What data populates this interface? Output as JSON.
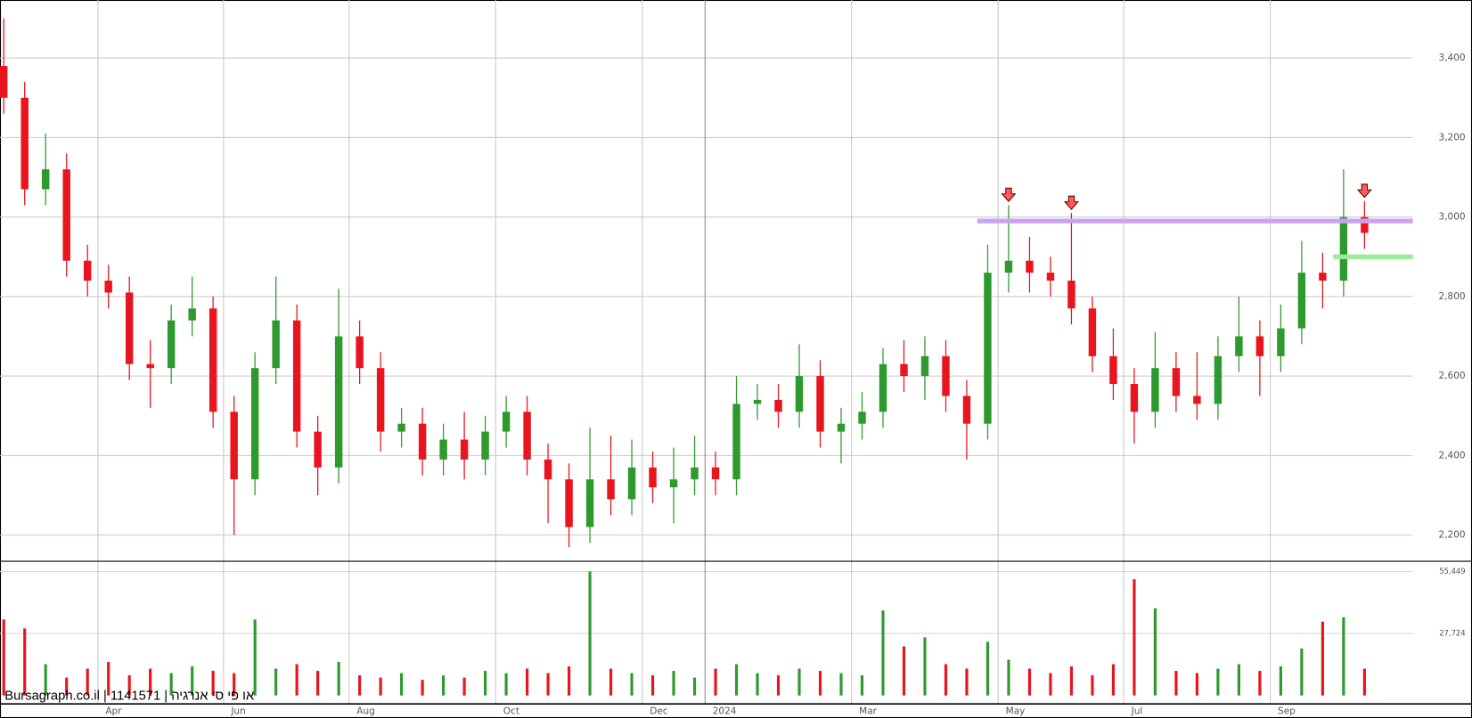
{
  "chart_data": {
    "type": "candlestick",
    "watermark": "Bursagraph.co.il | 1141571 | או פי סי אנרגיה",
    "categories": [
      null,
      null,
      null,
      null,
      null,
      "Apr",
      null,
      null,
      null,
      null,
      null,
      "Jun",
      null,
      null,
      null,
      null,
      null,
      "Aug",
      null,
      null,
      null,
      null,
      null,
      null,
      "Oct",
      null,
      null,
      null,
      null,
      null,
      null,
      "Dec",
      null,
      null,
      "2024",
      null,
      null,
      null,
      null,
      null,
      null,
      "Mar",
      null,
      null,
      null,
      null,
      null,
      null,
      "May",
      null,
      null,
      null,
      null,
      null,
      "Jul",
      null,
      null,
      null,
      null,
      null,
      null,
      "Sep",
      null,
      null,
      null,
      null
    ],
    "open": [
      3380,
      3300,
      3070,
      3120,
      2890,
      2840,
      2810,
      2630,
      2620,
      2740,
      2770,
      2510,
      2340,
      2620,
      2740,
      2460,
      2370,
      2700,
      2620,
      2460,
      2480,
      2390,
      2440,
      2390,
      2460,
      2510,
      2390,
      2340,
      2220,
      2340,
      2290,
      2370,
      2320,
      2340,
      2370,
      2340,
      2530,
      2540,
      2510,
      2600,
      2460,
      2480,
      2510,
      2630,
      2600,
      2650,
      2550,
      2480,
      2860,
      2890,
      2860,
      2840,
      2770,
      2650,
      2580,
      2510,
      2620,
      2550,
      2530,
      2650,
      2700,
      2650,
      2720,
      2860,
      2840,
      3000
    ],
    "high": [
      3500,
      3340,
      3210,
      3160,
      2930,
      2880,
      2850,
      2690,
      2780,
      2850,
      2800,
      2550,
      2660,
      2850,
      2780,
      2500,
      2820,
      2740,
      2660,
      2520,
      2520,
      2480,
      2510,
      2500,
      2550,
      2550,
      2430,
      2380,
      2470,
      2450,
      2440,
      2410,
      2420,
      2450,
      2410,
      2600,
      2580,
      2580,
      2680,
      2640,
      2520,
      2560,
      2670,
      2690,
      2700,
      2690,
      2590,
      2930,
      3030,
      2950,
      2900,
      3010,
      2800,
      2720,
      2620,
      2710,
      2660,
      2660,
      2700,
      2800,
      2740,
      2780,
      2940,
      2910,
      3120,
      3040
    ],
    "low": [
      3260,
      3030,
      3030,
      2850,
      2800,
      2770,
      2590,
      2520,
      2580,
      2700,
      2470,
      2200,
      2300,
      2580,
      2420,
      2300,
      2330,
      2580,
      2410,
      2420,
      2350,
      2350,
      2340,
      2350,
      2420,
      2350,
      2230,
      2170,
      2180,
      2250,
      2250,
      2280,
      2230,
      2300,
      2300,
      2300,
      2490,
      2470,
      2470,
      2420,
      2380,
      2440,
      2470,
      2560,
      2540,
      2510,
      2390,
      2440,
      2810,
      2810,
      2800,
      2730,
      2610,
      2540,
      2430,
      2470,
      2510,
      2490,
      2490,
      2610,
      2550,
      2610,
      2680,
      2770,
      2800,
      2920
    ],
    "close": [
      3300,
      3070,
      3120,
      2890,
      2840,
      2810,
      2630,
      2620,
      2740,
      2770,
      2510,
      2340,
      2620,
      2740,
      2460,
      2370,
      2700,
      2620,
      2460,
      2480,
      2390,
      2440,
      2390,
      2460,
      2510,
      2390,
      2340,
      2220,
      2340,
      2290,
      2370,
      2320,
      2340,
      2370,
      2340,
      2530,
      2540,
      2510,
      2600,
      2460,
      2480,
      2510,
      2630,
      2600,
      2650,
      2550,
      2480,
      2860,
      2890,
      2860,
      2840,
      2770,
      2650,
      2580,
      2510,
      2620,
      2550,
      2530,
      2650,
      2700,
      2650,
      2720,
      2860,
      2840,
      3000,
      2960
    ],
    "up_color": "#2e9a2e",
    "down_color": "#e8141e",
    "ylim": [
      2134,
      3546
    ],
    "yticks": [
      {
        "value": 2200,
        "label": "2,200"
      },
      {
        "value": 2400,
        "label": "2,400"
      },
      {
        "value": 2600,
        "label": "2,600"
      },
      {
        "value": 2800,
        "label": "2,800"
      },
      {
        "value": 3000,
        "label": "3,000"
      },
      {
        "value": 3200,
        "label": "3,200"
      },
      {
        "value": 3400,
        "label": "3,400"
      }
    ],
    "grid": true,
    "volume": {
      "values": [
        34000,
        30000,
        14000,
        8000,
        12000,
        15000,
        9000,
        12000,
        10000,
        13000,
        11000,
        10000,
        34000,
        12000,
        14000,
        11000,
        15000,
        9000,
        8000,
        10000,
        7000,
        9000,
        8000,
        11000,
        10000,
        12000,
        10000,
        13000,
        55449,
        12000,
        10000,
        9000,
        11000,
        8000,
        12000,
        14000,
        10000,
        9000,
        12000,
        11000,
        10000,
        9000,
        38000,
        22000,
        26000,
        14000,
        12000,
        24000,
        16000,
        12000,
        10000,
        13000,
        9000,
        14000,
        52000,
        39000,
        11000,
        10000,
        12000,
        14000,
        11000,
        13000,
        21000,
        33000,
        35000,
        12000
      ],
      "ylim": [
        0,
        59200
      ],
      "yticks": [
        {
          "value": 27724,
          "label": "27,724"
        },
        {
          "value": 55449,
          "label": "55,449"
        }
      ]
    },
    "levels": [
      {
        "value": 2990,
        "from": 47,
        "color": "#c9a3f2"
      },
      {
        "value": 2900,
        "from": 64,
        "color": "#98ee98"
      }
    ],
    "markers": [
      48,
      51,
      65
    ]
  }
}
